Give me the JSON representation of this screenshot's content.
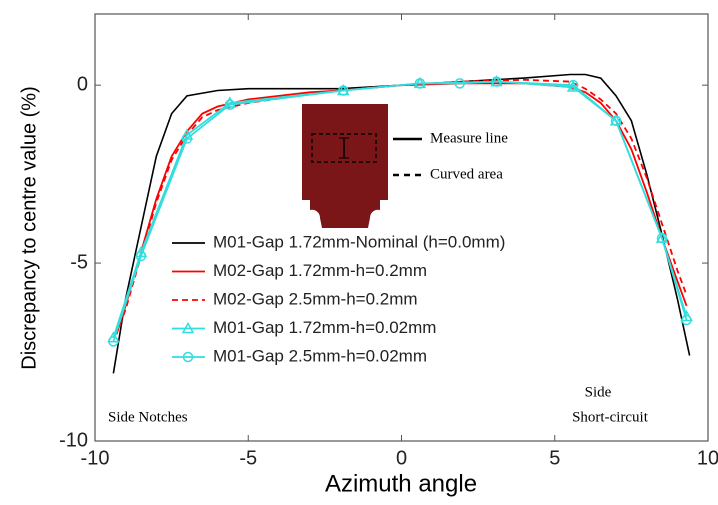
{
  "chart_data": {
    "type": "line",
    "x_label": "Azimuth angle",
    "y_label": "Discrepancy to centre value (%)",
    "xlim": [
      -10,
      10
    ],
    "xticks": [
      -10,
      -5,
      0,
      5,
      10
    ],
    "ylim": [
      -10,
      2
    ],
    "yticks": [
      0,
      -5,
      -10
    ],
    "grid": false,
    "series": [
      {
        "name": "M01-Gap 1.72mm-Nominal (h=0.0mm)",
        "color": "#000000",
        "dash": "solid",
        "marker": "none",
        "x": [
          -9.4,
          -9,
          -8.5,
          -8,
          -7.5,
          -7,
          -6,
          -5,
          -2,
          0,
          2,
          4,
          5.5,
          6,
          6.5,
          7,
          7.5,
          8,
          8.5,
          9,
          9.4
        ],
        "values": [
          -8.1,
          -6,
          -4,
          -2,
          -0.8,
          -0.3,
          -0.15,
          -0.1,
          -0.1,
          0,
          0.1,
          0.2,
          0.3,
          0.3,
          0.2,
          -0.3,
          -1,
          -2.5,
          -4.2,
          -6,
          -7.6
        ]
      },
      {
        "name": "M02-Gap 1.72mm-h=0.2mm",
        "color": "#ff0000",
        "dash": "solid",
        "marker": "none",
        "x": [
          -9.3,
          -9,
          -8.5,
          -8,
          -7.5,
          -7,
          -6.5,
          -6,
          -5,
          -3,
          -2,
          0,
          2,
          4,
          5.5,
          6,
          6.5,
          7,
          7.5,
          8,
          8.5,
          9,
          9.3
        ],
        "values": [
          -7,
          -6.2,
          -4.7,
          -3.2,
          -2,
          -1.3,
          -0.8,
          -0.6,
          -0.4,
          -0.2,
          -0.15,
          0,
          0.05,
          0.05,
          -0.05,
          -0.2,
          -0.5,
          -1,
          -1.8,
          -3,
          -4.3,
          -5.5,
          -6.2
        ]
      },
      {
        "name": "M02-Gap 2.5mm-h=0.2mm",
        "color": "#ff0000",
        "dash": "dashed",
        "marker": "none",
        "x": [
          -9.3,
          -9,
          -8.5,
          -8,
          -7.5,
          -7,
          -6.5,
          -6,
          -5,
          -3,
          -2,
          0,
          2,
          4,
          5.5,
          6,
          6.5,
          7,
          7.5,
          8,
          8.5,
          9,
          9.3
        ],
        "values": [
          -7,
          -6.3,
          -4.8,
          -3.3,
          -2.1,
          -1.4,
          -0.9,
          -0.7,
          -0.5,
          -0.25,
          -0.15,
          0,
          0.1,
          0.15,
          0.1,
          -0.1,
          -0.4,
          -0.8,
          -1.5,
          -2.6,
          -3.9,
          -5.2,
          -5.9
        ]
      },
      {
        "name": "M01-Gap 1.72mm-h=0.02mm",
        "color": "#33dddd",
        "dash": "solid",
        "marker": "triangle",
        "x": [
          -9.4,
          -8.5,
          -7,
          -5.6,
          -1.9,
          0.6,
          3.1,
          5.6,
          7,
          8.5,
          9.3
        ],
        "values": [
          -7.1,
          -4.7,
          -1.4,
          -0.5,
          -0.15,
          0.05,
          0.1,
          -0.05,
          -1,
          -4.3,
          -6.5
        ]
      },
      {
        "name": "M01-Gap 2.5mm-h=0.02mm",
        "color": "#33dddd",
        "dash": "solid",
        "marker": "circle",
        "x": [
          -9.4,
          -8.5,
          -7,
          -5.6,
          -1.9,
          0.6,
          1.9,
          3.1,
          5.6,
          7,
          8.5,
          9.3
        ],
        "values": [
          -7.2,
          -4.8,
          -1.5,
          -0.55,
          -0.15,
          0.05,
          0.05,
          0.1,
          0,
          -1,
          -4.3,
          -6.6
        ]
      }
    ],
    "inset_labels": [
      "Measure line",
      "Curved area"
    ],
    "annotations": [
      "Side Notches",
      "Side",
      "Short-circuit"
    ]
  }
}
